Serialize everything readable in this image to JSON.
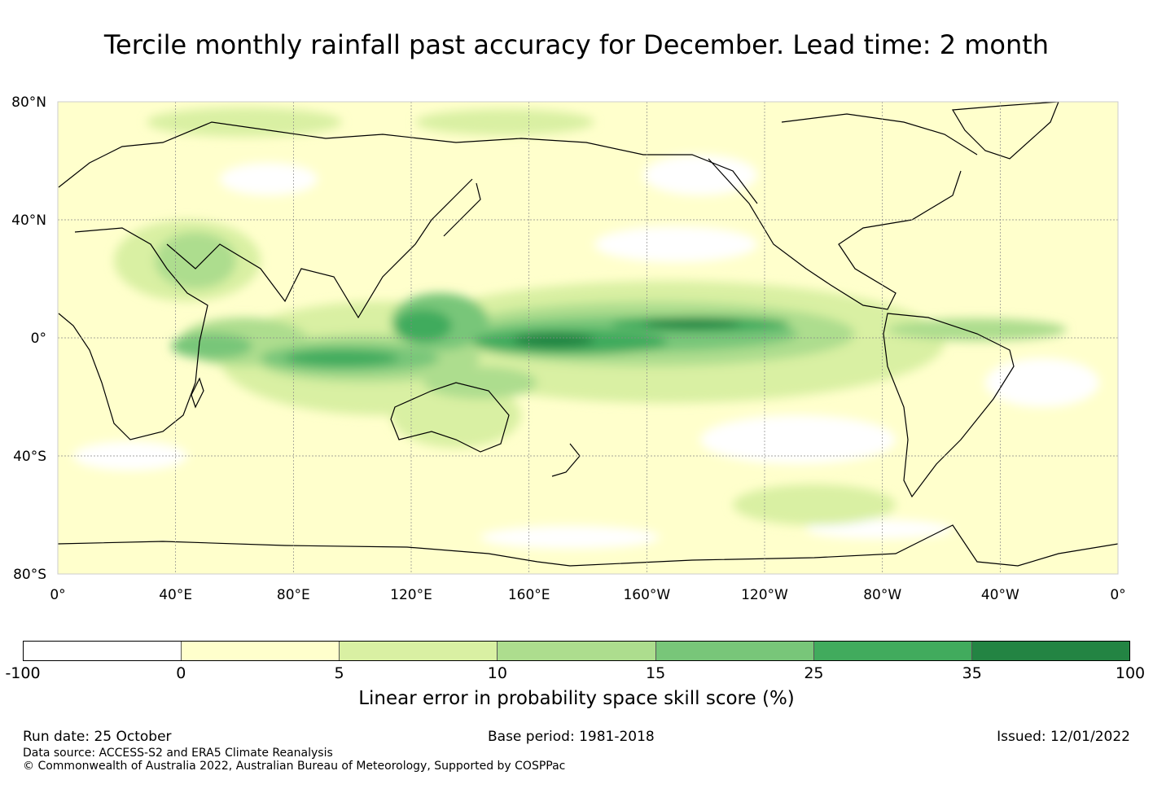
{
  "title": "Tercile monthly rainfall past accuracy for December. Lead time: 2 month",
  "map": {
    "lat_labels": [
      "80°N",
      "40°N",
      "0°",
      "40°S",
      "80°S"
    ],
    "lon_labels": [
      "0°",
      "40°E",
      "80°E",
      "120°E",
      "160°E",
      "160°W",
      "120°W",
      "80°W",
      "40°W",
      "0°"
    ],
    "lon_range": [
      0,
      360
    ],
    "lat_range": [
      -80,
      80
    ]
  },
  "colorbar": {
    "ticks": [
      "-100",
      "0",
      "5",
      "10",
      "15",
      "25",
      "35",
      "100"
    ],
    "colors": [
      "#ffffff",
      "#ffffcc",
      "#d9f0a3",
      "#addd8e",
      "#78c679",
      "#41ab5d",
      "#238443"
    ],
    "label": "Linear error in probability space skill score (%)"
  },
  "footer": {
    "run_date": "Run date: 25 October",
    "base_period": "Base period: 1981-2018",
    "issued": "Issued: 12/01/2022",
    "data_source": "Data source: ACCESS-S2 and ERA5 Climate Reanalysis",
    "copyright": "© Commonwealth of Australia 2022, Australian Bureau of Meteorology, Supported by COSPPac"
  }
}
